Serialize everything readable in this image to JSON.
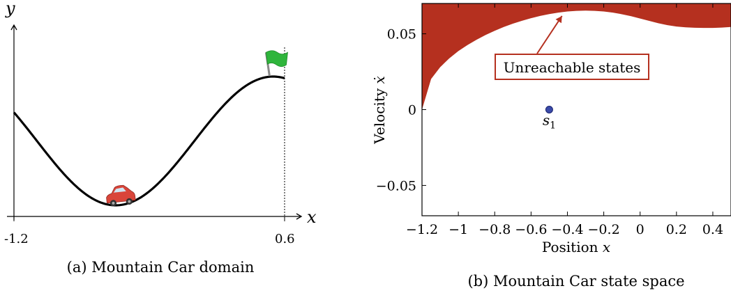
{
  "chart_data": [
    {
      "type": "line",
      "caption": "(a) Mountain Car domain",
      "xlabel": "x",
      "ylabel": "y",
      "x_ticks": [
        "-1.2",
        "0.6"
      ],
      "xlim": [
        -1.2,
        0.6
      ],
      "series": [
        {
          "function": "sin(3x)",
          "x_range": [
            -1.2,
            0.6
          ]
        }
      ],
      "car_x": -0.5,
      "goal_x": 0.5,
      "goal_line_x": 0.6,
      "icons": [
        "car-icon",
        "flag-icon"
      ],
      "colors": {
        "curve": "#000000",
        "car": "#d9453a",
        "flag": "#2fb53c"
      }
    },
    {
      "type": "area",
      "caption": "(b) Mountain Car state space",
      "xlabel": "Position",
      "xlabel_symbol": "x",
      "ylabel": "Velocity",
      "ylabel_symbol": "ẋ",
      "xlim": [
        -1.2,
        0.5
      ],
      "ylim": [
        -0.07,
        0.07
      ],
      "x_ticks": [
        {
          "value": -1.2,
          "label": "−1.2"
        },
        {
          "value": -1.0,
          "label": "−1"
        },
        {
          "value": -0.8,
          "label": "−0.8"
        },
        {
          "value": -0.6,
          "label": "−0.6"
        },
        {
          "value": -0.4,
          "label": "−0.4"
        },
        {
          "value": -0.2,
          "label": "−0.2"
        },
        {
          "value": 0.0,
          "label": "0"
        },
        {
          "value": 0.2,
          "label": "0.2"
        },
        {
          "value": 0.4,
          "label": "0.4"
        }
      ],
      "y_ticks": [
        {
          "value": 0.05,
          "label": "0.05"
        },
        {
          "value": 0.0,
          "label": "0"
        },
        {
          "value": -0.05,
          "label": "−0.05"
        }
      ],
      "boundary": {
        "x": [
          -1.2,
          -1.15,
          -1.1,
          -1.05,
          -1.0,
          -0.95,
          -0.9,
          -0.85,
          -0.8,
          -0.75,
          -0.7,
          -0.65,
          -0.6,
          -0.55,
          -0.5,
          -0.45,
          -0.4,
          -0.35,
          -0.3,
          -0.25,
          -0.2,
          -0.15,
          -0.1,
          -0.05,
          0.0,
          0.05,
          0.1,
          0.15,
          0.2,
          0.25,
          0.3,
          0.35,
          0.4,
          0.45,
          0.5
        ],
        "y": [
          0.0,
          0.0202,
          0.028,
          0.0338,
          0.0386,
          0.0426,
          0.0461,
          0.0492,
          0.052,
          0.0545,
          0.0567,
          0.0586,
          0.0603,
          0.0618,
          0.063,
          0.064,
          0.0647,
          0.0651,
          0.0653,
          0.0651,
          0.0647,
          0.064,
          0.0629,
          0.0616,
          0.0601,
          0.0585,
          0.057,
          0.0557,
          0.0548,
          0.0543,
          0.054,
          0.0539,
          0.0539,
          0.0541,
          0.0545
        ]
      },
      "region_label": "Unreachable states",
      "arrow_target": {
        "x": -0.43,
        "y": 0.0645
      },
      "point": {
        "x": -0.5,
        "y": 0.0,
        "label": "s",
        "subscript": "1"
      },
      "colors": {
        "region": "#b5301f",
        "point": "#3a4aa8",
        "label_border": "#b5301f"
      }
    }
  ]
}
